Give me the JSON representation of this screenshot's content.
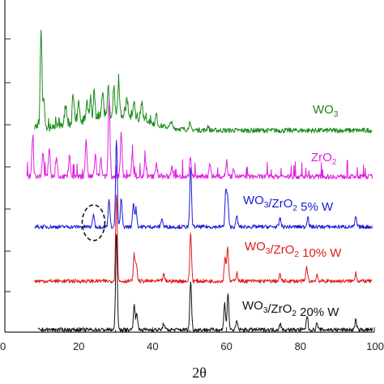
{
  "chart_data": {
    "type": "line",
    "xlabel": "2θ",
    "ylabel": "",
    "xlim": [
      0,
      100
    ],
    "x_ticks": [
      0,
      20,
      40,
      60,
      80,
      100
    ],
    "x_tick_labels": [
      "0",
      "20",
      "40",
      "60",
      "80",
      "100"
    ],
    "y_ticks_shown_without_labels": true,
    "grid": false,
    "legend": "inline labels at right of each trace",
    "annotations": [
      {
        "type": "dashed-ellipse",
        "near_x": 24,
        "series": "WO3/ZrO2 5% W"
      }
    ],
    "series": [
      {
        "name": "WO3",
        "label_main": "WO",
        "label_subs": [
          "3"
        ],
        "label_parts": [
          {
            "t": "WO"
          },
          {
            "t": "3",
            "sub": true
          }
        ],
        "color": "#1a8a1a",
        "baseline_offset": 4,
        "peaks": [
          [
            9.8,
            9.0
          ],
          [
            10.5,
            2.5
          ],
          [
            16.5,
            2.0
          ],
          [
            18.5,
            2.4
          ],
          [
            20,
            1.8
          ],
          [
            22.2,
            1.6
          ],
          [
            23.2,
            2.0
          ],
          [
            24.2,
            2.2
          ],
          [
            26.5,
            2.0
          ],
          [
            28.0,
            2.6
          ],
          [
            29.5,
            2.4
          ],
          [
            30.8,
            3.0
          ],
          [
            33,
            1.8
          ],
          [
            35,
            1.5
          ],
          [
            37,
            1.2
          ],
          [
            41,
            1.0
          ],
          [
            45,
            0.6
          ],
          [
            50,
            0.6
          ],
          [
            55,
            0.4
          ]
        ],
        "hump": {
          "center": 30,
          "width": 12,
          "height": 1.2
        }
      },
      {
        "name": "ZrO2",
        "label_main": "ZrO",
        "label_subs": [
          "2"
        ],
        "label_parts": [
          {
            "t": "ZrO"
          },
          {
            "t": "2",
            "sub": true
          }
        ],
        "color": "#e020e0",
        "baseline_offset": 3,
        "peaks": [
          [
            7.5,
            3.5
          ],
          [
            10.3,
            2.2
          ],
          [
            12.0,
            2.5
          ],
          [
            14.0,
            1.8
          ],
          [
            17.5,
            2.0
          ],
          [
            22.0,
            3.4
          ],
          [
            24.5,
            2.0
          ],
          [
            26.0,
            1.6
          ],
          [
            28.2,
            7.0
          ],
          [
            31.5,
            4.0
          ],
          [
            34.5,
            2.2
          ],
          [
            38.0,
            1.5
          ],
          [
            41.0,
            1.3
          ],
          [
            45.2,
            1.0
          ],
          [
            50.2,
            1.8
          ],
          [
            55.5,
            1.2
          ],
          [
            60.0,
            1.3
          ],
          [
            62.0,
            0.8
          ]
        ],
        "hump": null
      },
      {
        "name": "WO3/ZrO2 5% W",
        "label_parts": [
          {
            "t": "WO"
          },
          {
            "t": "3",
            "sub": true
          },
          {
            "t": "/ZrO"
          },
          {
            "t": "2",
            "sub": true
          },
          {
            "t": " 5% W"
          }
        ],
        "color": "#1a1ad6",
        "baseline_offset": 2,
        "peaks": [
          [
            24.0,
            1.2
          ],
          [
            28.2,
            2.6
          ],
          [
            30.2,
            8.0
          ],
          [
            31.5,
            2.6
          ],
          [
            34.8,
            2.2
          ],
          [
            35.5,
            1.7
          ],
          [
            42.5,
            0.8
          ],
          [
            50.3,
            5.5
          ],
          [
            59.8,
            3.2
          ],
          [
            60.3,
            2.6
          ],
          [
            62.8,
            1.0
          ],
          [
            74.5,
            0.8
          ],
          [
            82.0,
            1.0
          ],
          [
            95.0,
            0.9
          ]
        ],
        "hump": null
      },
      {
        "name": "WO3/ZrO2 10% W",
        "label_parts": [
          {
            "t": "WO"
          },
          {
            "t": "3",
            "sub": true
          },
          {
            "t": "/ZrO"
          },
          {
            "t": "2",
            "sub": true
          },
          {
            "t": " 10% W"
          }
        ],
        "color": "#e01a1a",
        "baseline_offset": 1,
        "peaks": [
          [
            30.2,
            8.0
          ],
          [
            35.0,
            2.4
          ],
          [
            35.6,
            1.6
          ],
          [
            43.0,
            0.6
          ],
          [
            50.3,
            4.4
          ],
          [
            59.6,
            2.2
          ],
          [
            60.3,
            3.2
          ],
          [
            62.8,
            0.8
          ],
          [
            74.5,
            0.6
          ],
          [
            81.7,
            1.3
          ],
          [
            84.5,
            0.6
          ],
          [
            95.0,
            0.8
          ]
        ],
        "hump": null
      },
      {
        "name": "WO3/ZrO2 20% W",
        "label_parts": [
          {
            "t": "WO"
          },
          {
            "t": "3",
            "sub": true
          },
          {
            "t": "/ZrO"
          },
          {
            "t": "2",
            "sub": true
          },
          {
            "t": " 20% W"
          }
        ],
        "color": "#111111",
        "baseline_offset": 0,
        "peaks": [
          [
            30.2,
            9.0
          ],
          [
            35.0,
            2.2
          ],
          [
            35.7,
            1.6
          ],
          [
            43.0,
            0.6
          ],
          [
            50.3,
            4.5
          ],
          [
            59.5,
            2.4
          ],
          [
            60.4,
            3.3
          ],
          [
            62.8,
            0.8
          ],
          [
            74.5,
            0.6
          ],
          [
            81.8,
            1.3
          ],
          [
            84.5,
            0.6
          ],
          [
            95.0,
            0.9
          ]
        ],
        "hump": null
      }
    ]
  }
}
